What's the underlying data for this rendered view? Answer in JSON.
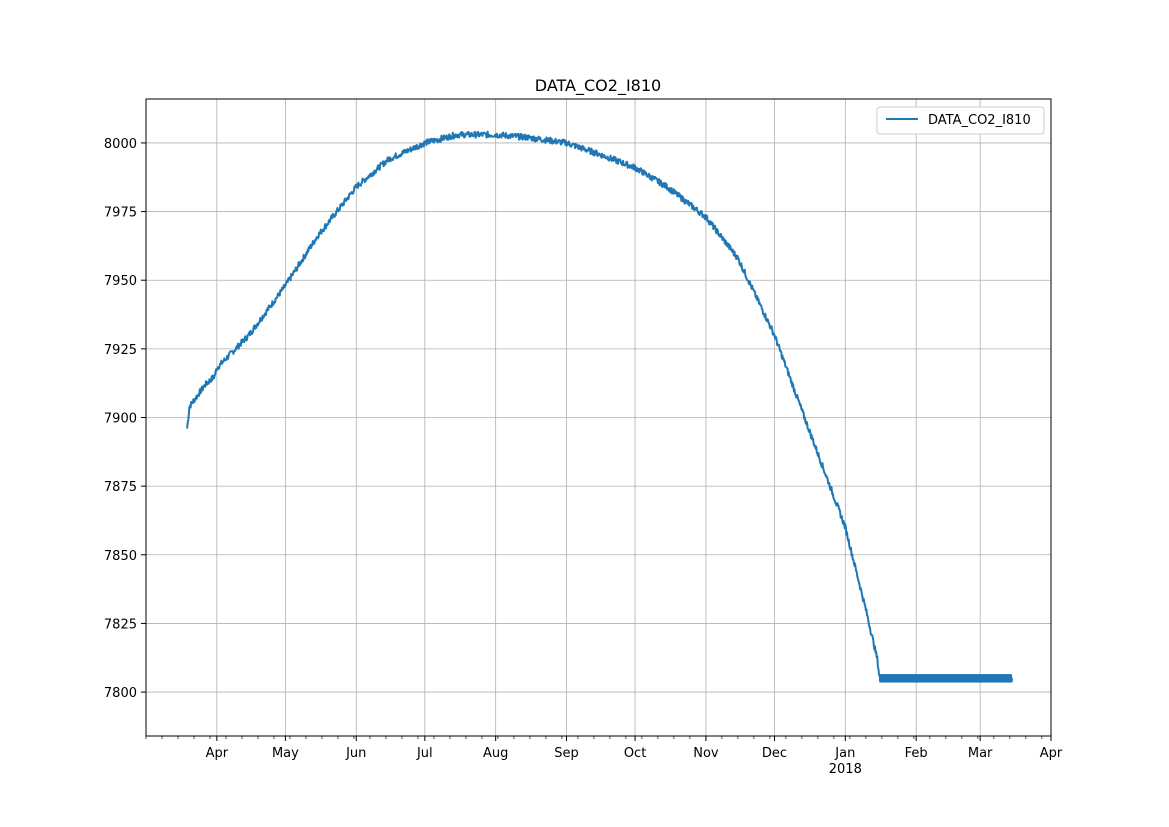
{
  "chart_data": {
    "type": "line",
    "title": "DATA_CO2_I810",
    "xlabel": "",
    "ylabel": "",
    "x_ticks": [
      {
        "date": "2017-04-01",
        "label": "Apr"
      },
      {
        "date": "2017-05-01",
        "label": "May"
      },
      {
        "date": "2017-06-01",
        "label": "Jun"
      },
      {
        "date": "2017-07-01",
        "label": "Jul"
      },
      {
        "date": "2017-08-01",
        "label": "Aug"
      },
      {
        "date": "2017-09-01",
        "label": "Sep"
      },
      {
        "date": "2017-10-01",
        "label": "Oct"
      },
      {
        "date": "2017-11-01",
        "label": "Nov"
      },
      {
        "date": "2017-12-01",
        "label": "Dec"
      },
      {
        "date": "2018-01-01",
        "label": "Jan",
        "sublabel": "2018"
      },
      {
        "date": "2018-02-01",
        "label": "Feb"
      },
      {
        "date": "2018-03-01",
        "label": "Mar"
      },
      {
        "date": "2018-04-01",
        "label": "Apr"
      }
    ],
    "xlim": [
      "2017-03-01",
      "2018-04-01"
    ],
    "y_ticks": [
      7800,
      7825,
      7850,
      7875,
      7900,
      7925,
      7950,
      7975,
      8000
    ],
    "ylim": [
      7784,
      8016
    ],
    "grid": true,
    "legend": {
      "position": "top-right"
    },
    "series": [
      {
        "name": "DATA_CO2_I810",
        "color": "#1f77b4",
        "points": [
          {
            "x": "2017-03-19",
            "y": 7896
          },
          {
            "x": "2017-03-20",
            "y": 7904
          },
          {
            "x": "2017-03-27",
            "y": 7912
          },
          {
            "x": "2017-03-31",
            "y": 7915
          },
          {
            "x": "2017-04-01",
            "y": 7918
          },
          {
            "x": "2017-04-15",
            "y": 7930
          },
          {
            "x": "2017-05-01",
            "y": 7948
          },
          {
            "x": "2017-05-15",
            "y": 7966
          },
          {
            "x": "2017-06-01",
            "y": 7984
          },
          {
            "x": "2017-06-15",
            "y": 7994
          },
          {
            "x": "2017-07-01",
            "y": 8000
          },
          {
            "x": "2017-07-15",
            "y": 8003
          },
          {
            "x": "2017-08-01",
            "y": 8003
          },
          {
            "x": "2017-08-15",
            "y": 8002
          },
          {
            "x": "2017-09-01",
            "y": 8000
          },
          {
            "x": "2017-09-15",
            "y": 7996
          },
          {
            "x": "2017-10-01",
            "y": 7991
          },
          {
            "x": "2017-10-15",
            "y": 7984
          },
          {
            "x": "2017-11-01",
            "y": 7973
          },
          {
            "x": "2017-11-15",
            "y": 7958
          },
          {
            "x": "2017-12-01",
            "y": 7930
          },
          {
            "x": "2017-12-15",
            "y": 7898
          },
          {
            "x": "2018-01-01",
            "y": 7860
          },
          {
            "x": "2018-01-10",
            "y": 7830
          },
          {
            "x": "2018-01-15",
            "y": 7812
          },
          {
            "x": "2018-01-16",
            "y": 7805
          },
          {
            "x": "2018-03-15",
            "y": 7805
          }
        ]
      }
    ]
  }
}
